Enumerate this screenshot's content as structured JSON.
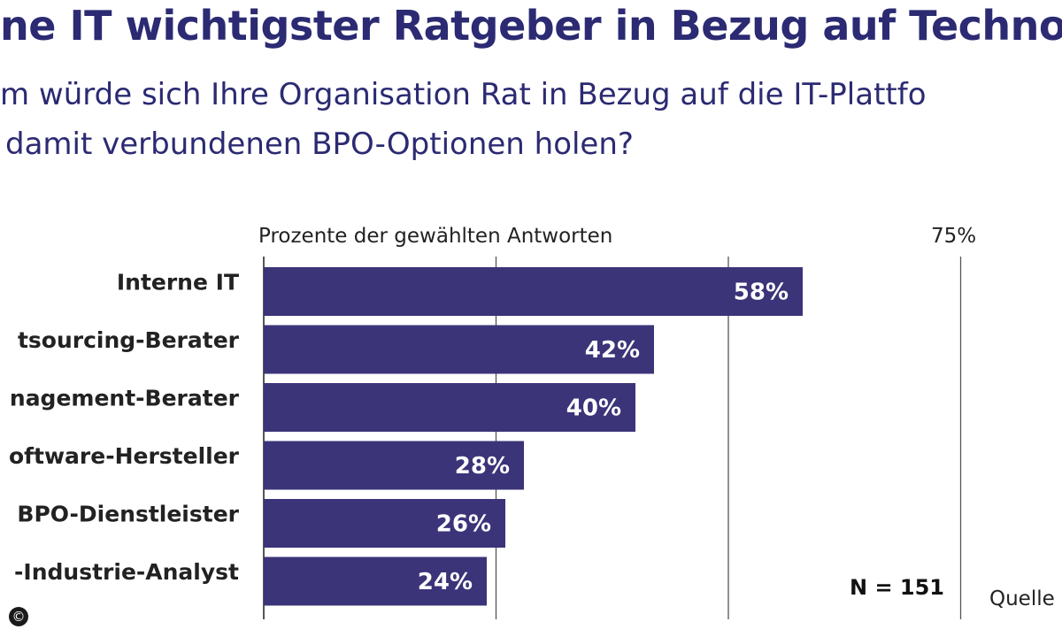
{
  "header": {
    "title": "ne IT wichtigster Ratgeber in Bezug auf Techno",
    "subtitle_line1": "m würde sich Ihre Organisation Rat in Bezug auf die IT-Plattfo",
    "subtitle_line2": "damit verbundenen BPO-Optionen holen?"
  },
  "axis_caption": "Prozente der gewählten Antworten",
  "axis_max_label": "75%",
  "sample_size": "N = 151",
  "source_label": "Quelle",
  "copyright_symbol": "©",
  "colors": {
    "bar": "#3b3479",
    "text": "#2b2a72",
    "gridline": "#555555"
  },
  "chart_data": {
    "type": "bar",
    "orientation": "horizontal",
    "categories": [
      "Interne IT",
      "tsourcing-Berater",
      "nagement-Berater",
      "oftware-Hersteller",
      "BPO-Dienstleister",
      "-Industrie-Analyst"
    ],
    "values": [
      58,
      42,
      40,
      28,
      26,
      24
    ],
    "value_labels": [
      "58%",
      "42%",
      "40%",
      "28%",
      "26%",
      "24%"
    ],
    "xlabel": "Prozente der gewählten Antworten",
    "xlim": [
      0,
      75
    ],
    "gridlines": [
      0,
      25,
      50,
      75
    ],
    "grid": true
  }
}
